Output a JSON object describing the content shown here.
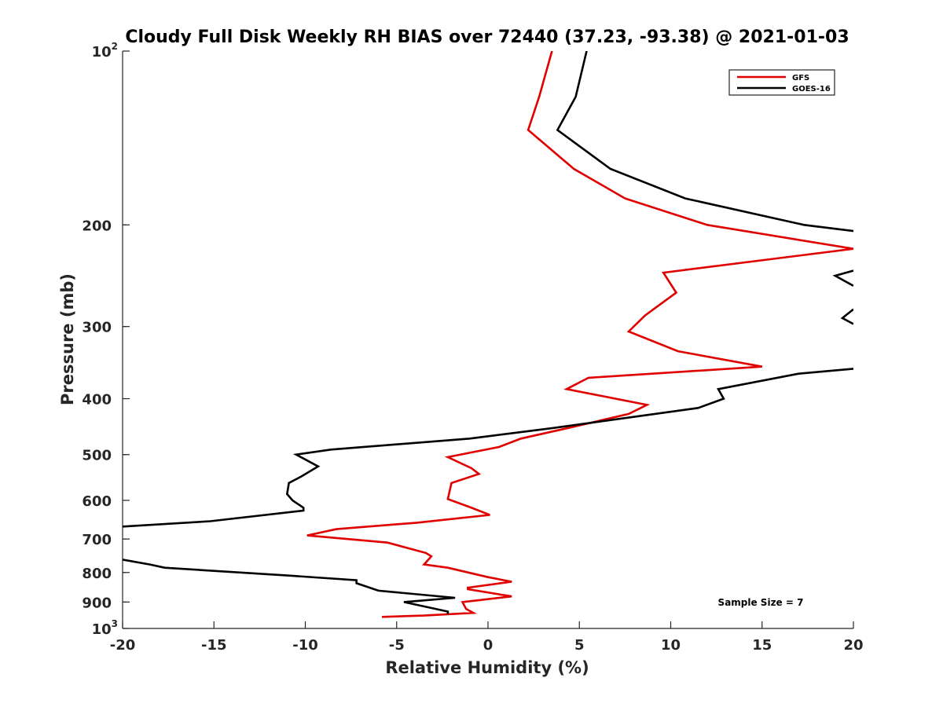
{
  "chart_data": {
    "type": "line",
    "title": "Cloudy Full Disk Weekly RH BIAS over 72440 (37.23, -93.38) @ 2021-01-03",
    "xlabel": "Relative Humidity (%)",
    "ylabel": "Pressure (mb)",
    "xlim": [
      -20,
      20
    ],
    "ylim": [
      100,
      1000
    ],
    "y_scale": "log",
    "y_reversed": true,
    "grid": false,
    "legend_position": "top-right",
    "x_ticks": [
      "-20",
      "-15",
      "-10",
      "-5",
      "0",
      "5",
      "10",
      "15",
      "20"
    ],
    "y_ticks": [
      {
        "label": "10",
        "sup": "2"
      },
      {
        "label": "200",
        "sup": ""
      },
      {
        "label": "300",
        "sup": ""
      },
      {
        "label": "400",
        "sup": ""
      },
      {
        "label": "500",
        "sup": ""
      },
      {
        "label": "600",
        "sup": ""
      },
      {
        "label": "700",
        "sup": ""
      },
      {
        "label": "800",
        "sup": ""
      },
      {
        "label": "900",
        "sup": ""
      },
      {
        "label": "10",
        "sup": "3"
      }
    ],
    "annotation": "Sample Size = 7",
    "series": [
      {
        "name": "GFS",
        "color": "#e00000",
        "points": [
          [
            3.5,
            100
          ],
          [
            2.8,
            120
          ],
          [
            2.2,
            137
          ],
          [
            4.7,
            160
          ],
          [
            7.5,
            180
          ],
          [
            12,
            200
          ],
          [
            20,
            220
          ],
          [
            9.6,
            242
          ],
          [
            10.3,
            262
          ],
          [
            8.6,
            287
          ],
          [
            7.7,
            306
          ],
          [
            10.4,
            331
          ],
          [
            15,
            352
          ],
          [
            5.5,
            368
          ],
          [
            4.3,
            385
          ],
          [
            8.7,
            410
          ],
          [
            7.7,
            425
          ],
          [
            4.6,
            448
          ],
          [
            1.8,
            469
          ],
          [
            0.6,
            485
          ],
          [
            -2.2,
            505
          ],
          [
            -0.9,
            528
          ],
          [
            -0.5,
            540
          ],
          [
            -2,
            560
          ],
          [
            -2.2,
            597
          ],
          [
            -0.9,
            618
          ],
          [
            0.1,
            636
          ],
          [
            -3.9,
            656
          ],
          [
            -8.3,
            673
          ],
          [
            -9.9,
            690
          ],
          [
            -5.5,
            710
          ],
          [
            -3.4,
            740
          ],
          [
            -3.1,
            750
          ],
          [
            -3.5,
            775
          ],
          [
            -2.2,
            785
          ],
          [
            0,
            815
          ],
          [
            1.3,
            830
          ],
          [
            -1.1,
            850
          ],
          [
            -1.1,
            855
          ],
          [
            1.3,
            880
          ],
          [
            -1.4,
            900
          ],
          [
            -1.2,
            925
          ],
          [
            -0.8,
            940
          ],
          [
            -3.5,
            950
          ],
          [
            -5.8,
            955
          ]
        ]
      },
      {
        "name": "GOES-16",
        "color": "#000000",
        "points_segments": [
          [
            [
              5.4,
              100
            ],
            [
              4.8,
              120
            ],
            [
              3.8,
              137
            ],
            [
              6.7,
              160
            ],
            [
              10.8,
              180
            ],
            [
              17.3,
              200
            ],
            [
              20,
              205
            ]
          ],
          [
            [
              20,
              240
            ],
            [
              19,
              245
            ],
            [
              20,
              255
            ]
          ],
          [
            [
              20,
              280
            ],
            [
              19.4,
              290
            ],
            [
              20,
              297
            ]
          ],
          [
            [
              20,
              355
            ],
            [
              17,
              362
            ],
            [
              12.6,
              385
            ],
            [
              12.9,
              400
            ],
            [
              11.5,
              415
            ],
            [
              3.5,
              450
            ],
            [
              -1,
              469
            ],
            [
              -8.6,
              490
            ],
            [
              -10.5,
              500
            ],
            [
              -9.3,
              524
            ],
            [
              -10.2,
              545
            ],
            [
              -10.9,
              560
            ],
            [
              -11,
              585
            ],
            [
              -10.7,
              600
            ],
            [
              -10.1,
              618
            ],
            [
              -10.1,
              625
            ],
            [
              -15.2,
              652
            ],
            [
              -20,
              666
            ]
          ],
          [
            [
              -20,
              760
            ],
            [
              -18.5,
              775
            ],
            [
              -17.7,
              785
            ],
            [
              -10.9,
              810
            ],
            [
              -7.2,
              825
            ],
            [
              -7.2,
              835
            ],
            [
              -6,
              860
            ],
            [
              -1.8,
              885
            ],
            [
              -4.6,
              900
            ],
            [
              -2.2,
              935
            ],
            [
              -2.2,
              945
            ]
          ]
        ]
      }
    ]
  }
}
